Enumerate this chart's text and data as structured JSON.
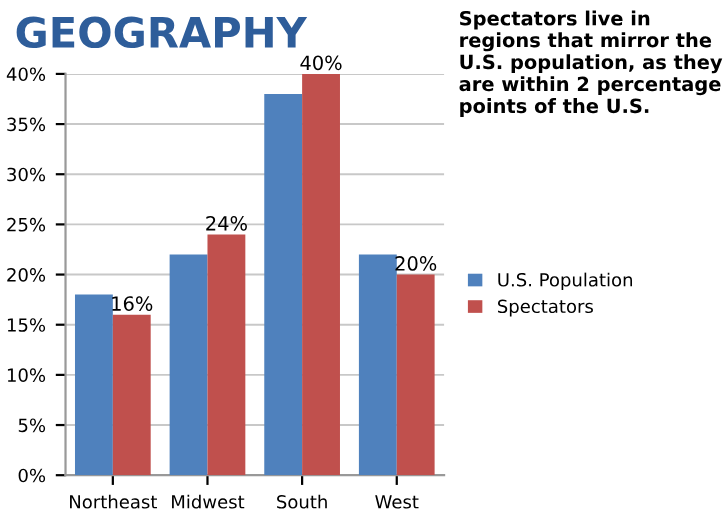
{
  "chart_data": {
    "type": "bar",
    "title": "GEOGRAPHY",
    "annotations": [
      "Spectators live in regions that mirror the U.S. population, as they are within 2 percentage points of the U.S."
    ],
    "categories": [
      "Northeast",
      "Midwest",
      "South",
      "West"
    ],
    "series": [
      {
        "name": "U.S. Population",
        "color": "#4f81bd",
        "values": [
          18,
          22,
          38,
          22
        ]
      },
      {
        "name": "Spectators",
        "color": "#c0504d",
        "values": [
          16,
          24,
          40,
          20
        ],
        "value_labels": [
          "16%",
          "24%",
          "40%",
          "20%"
        ]
      }
    ],
    "ylim": [
      0,
      40
    ],
    "yticks": [
      {
        "value": 0,
        "label": "0%"
      },
      {
        "value": 5,
        "label": "5%"
      },
      {
        "value": 10,
        "label": "10%"
      },
      {
        "value": 15,
        "label": "15%"
      },
      {
        "value": 20,
        "label": "20%"
      },
      {
        "value": 25,
        "label": "25%"
      },
      {
        "value": 30,
        "label": "30%"
      },
      {
        "value": 35,
        "label": "35%"
      },
      {
        "value": 40,
        "label": "40%"
      }
    ],
    "grid": "y",
    "legend": "right"
  }
}
